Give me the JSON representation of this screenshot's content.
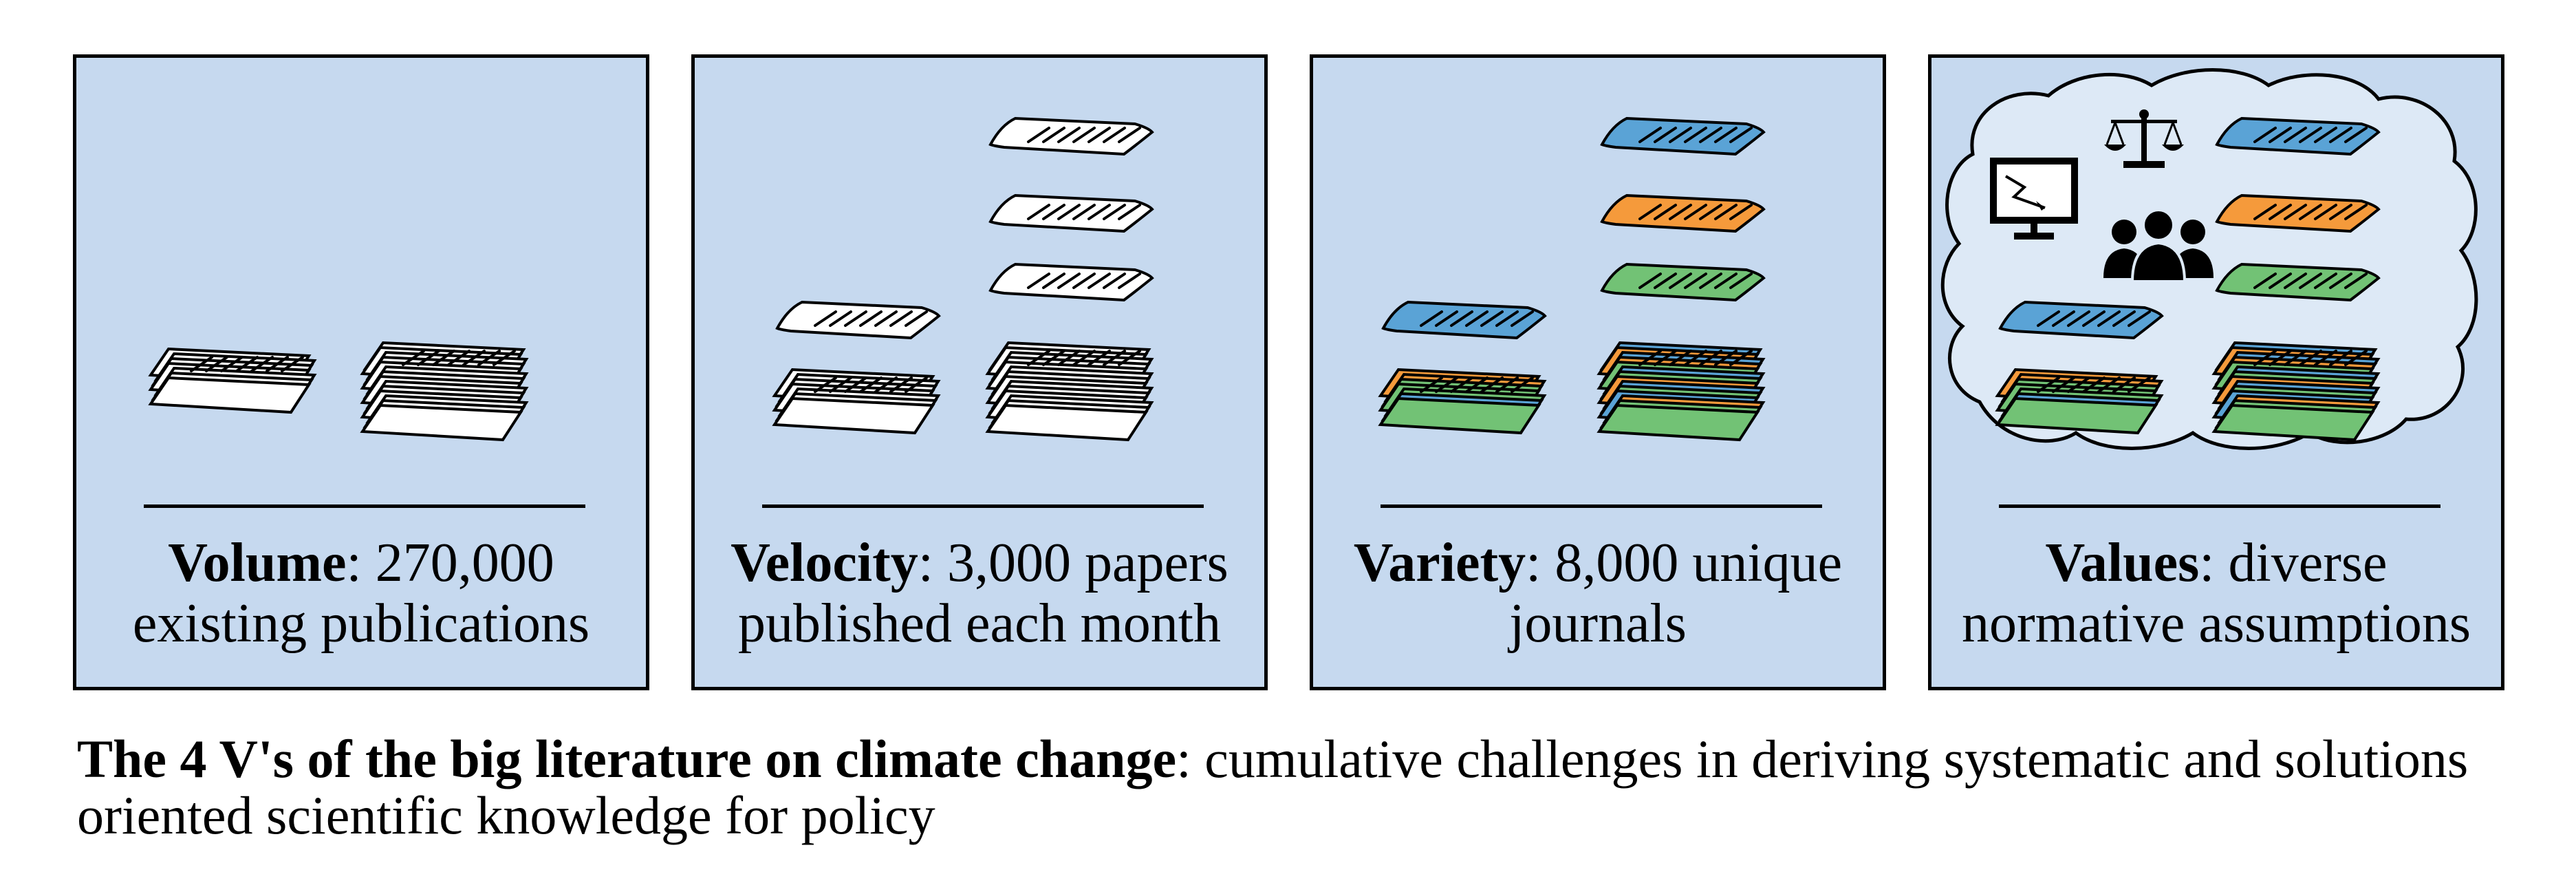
{
  "panels": [
    {
      "term": "Volume",
      "desc": ": 270,000",
      "desc2": "existing publications"
    },
    {
      "term": "Velocity",
      "desc": ": 3,000 papers",
      "desc2": "published each month"
    },
    {
      "term": "Variety",
      "desc": ": 8,000 unique",
      "desc2": "journals"
    },
    {
      "term": "Values",
      "desc": ": diverse",
      "desc2": "normative assumptions"
    }
  ],
  "caption": {
    "bold": "The 4 V's of the big literature on climate change",
    "rest": ": cumulative challenges in deriving systematic and solutions oriented scientific knowledge for policy"
  },
  "colors": {
    "panel_bg": "#c6d9ef",
    "cloud_bg": "#dde9f6",
    "paper_white": "#ffffff",
    "paper_blue": "#5aa3d6",
    "paper_orange": "#f59a3b",
    "paper_green": "#72c275"
  },
  "icons": [
    "paper-stack-icon",
    "paper-sheet-icon",
    "monitor-chart-icon",
    "scales-icon",
    "people-group-icon",
    "cloud-shape"
  ]
}
